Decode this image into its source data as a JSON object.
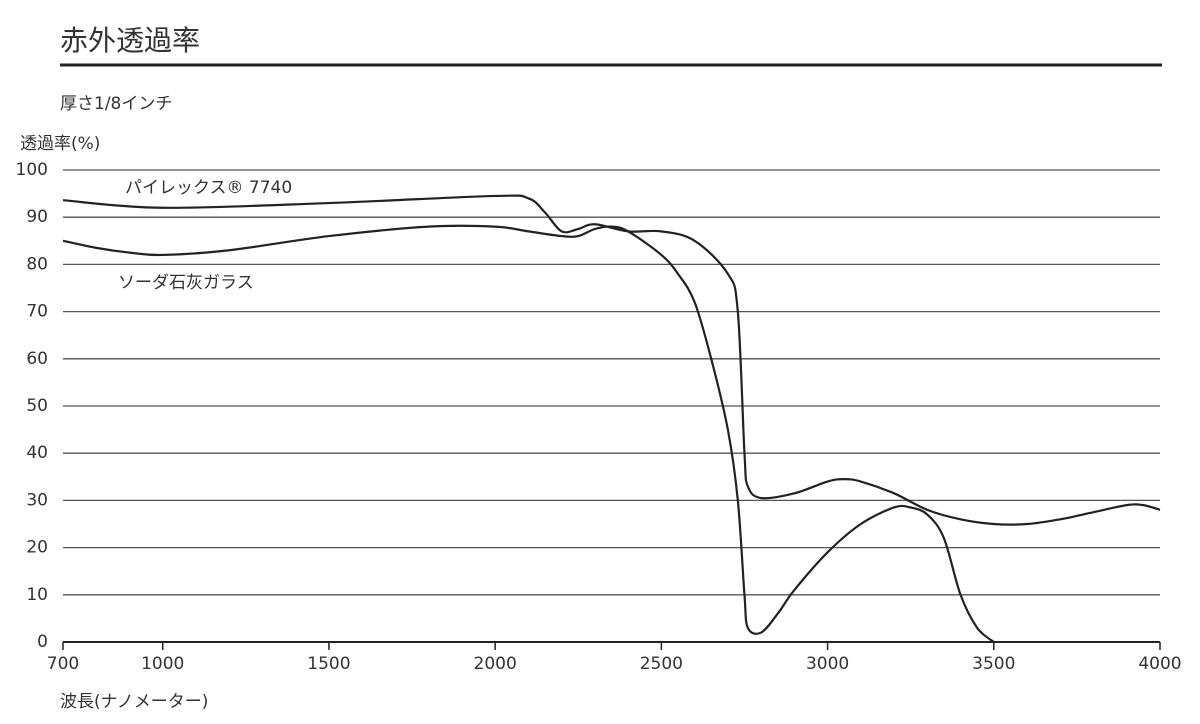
{
  "chart_data": {
    "type": "line",
    "title": "赤外透過率",
    "subtitle": "厚さ1/8インチ",
    "y_label": "透過率(%)",
    "x_label": "波長(ナノメーター)",
    "xlim": [
      700,
      4000
    ],
    "xticks": [
      700,
      1000,
      1500,
      2000,
      2500,
      3000,
      3500,
      4000
    ],
    "ylim": [
      0,
      100
    ],
    "yticks": [
      0,
      10,
      20,
      30,
      40,
      50,
      60,
      70,
      80,
      90,
      100
    ],
    "grid": true,
    "series": [
      {
        "name": "パイレックス® 7740",
        "color": "#222222",
        "x": [
          700,
          1000,
          1500,
          2000,
          2100,
          2150,
          2200,
          2250,
          2300,
          2400,
          2500,
          2600,
          2700,
          2730,
          2750,
          2760,
          2800,
          2900,
          3000,
          3050,
          3100,
          3200,
          3300,
          3400,
          3500,
          3600,
          3700,
          3800,
          3900,
          3950,
          4000
        ],
        "values": [
          93.6,
          92,
          93,
          94.5,
          94,
          91,
          87,
          87.5,
          88.5,
          87,
          87,
          85,
          78,
          70,
          40,
          33,
          30.5,
          31.5,
          34,
          34.5,
          34,
          31.5,
          28,
          26,
          25,
          25,
          26,
          27.5,
          29,
          29,
          28
        ]
      },
      {
        "name": "ソーダ石灰ガラス",
        "color": "#222222",
        "x": [
          700,
          800,
          900,
          1000,
          1200,
          1500,
          1800,
          2000,
          2100,
          2200,
          2250,
          2300,
          2350,
          2400,
          2500,
          2550,
          2600,
          2650,
          2700,
          2730,
          2750,
          2760,
          2800,
          2850,
          2900,
          3000,
          3100,
          3200,
          3250,
          3300,
          3350,
          3400,
          3450,
          3500
        ],
        "values": [
          85,
          83.5,
          82.5,
          82,
          83,
          86,
          88,
          88,
          87,
          86,
          86,
          87.5,
          88,
          87,
          82,
          78,
          72,
          60,
          45,
          30,
          10,
          3,
          2,
          6,
          11,
          19,
          25,
          28.5,
          28.5,
          27,
          22,
          10,
          3,
          0
        ]
      }
    ]
  }
}
